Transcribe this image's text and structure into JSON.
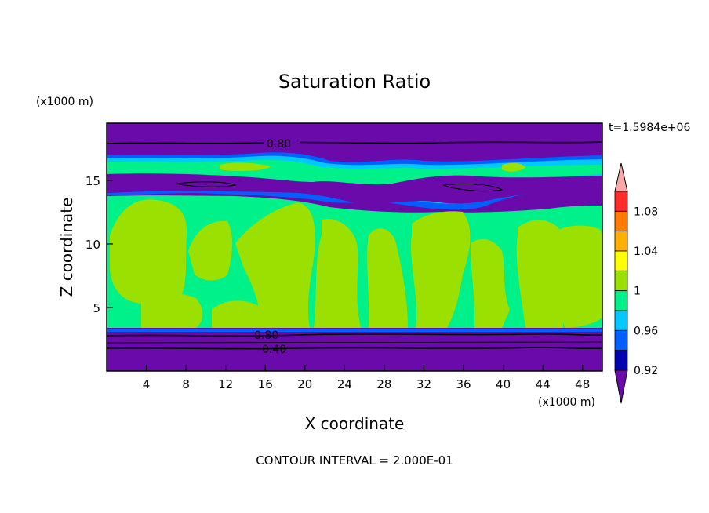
{
  "chart_data": {
    "type": "heatmap",
    "title": "Saturation Ratio",
    "xlabel": "X coordinate",
    "ylabel": "Z coordinate",
    "x_unit": "(x1000 m)",
    "y_unit": "(x1000 m)",
    "time_label": "t=1.5984e+06",
    "footer": "CONTOUR INTERVAL = 2.000E-01",
    "xlim": [
      0,
      50
    ],
    "ylim": [
      0,
      19.5
    ],
    "x_ticks": [
      "4",
      "8",
      "12",
      "16",
      "20",
      "24",
      "28",
      "32",
      "36",
      "40",
      "44",
      "48"
    ],
    "y_ticks": [
      "5",
      "10",
      "15"
    ],
    "contour_labels": [
      "0.80",
      "0.80",
      "0.40"
    ],
    "colorbar": {
      "labels": [
        "1.08",
        "1.04",
        "1",
        "0.96",
        "0.92"
      ],
      "colors": [
        "#f7a8a8",
        "#ff2a2a",
        "#ff7a00",
        "#ffb000",
        "#ffff00",
        "#9be000",
        "#00f08a",
        "#00c8ff",
        "#0060ff",
        "#0000b0",
        "#6a0aaa"
      ]
    },
    "colors": {
      "low": "#6a0aaa",
      "mid_blue": "#0060ff",
      "cyan": "#00c8ff",
      "green": "#00f08a",
      "lime": "#9be000"
    }
  }
}
